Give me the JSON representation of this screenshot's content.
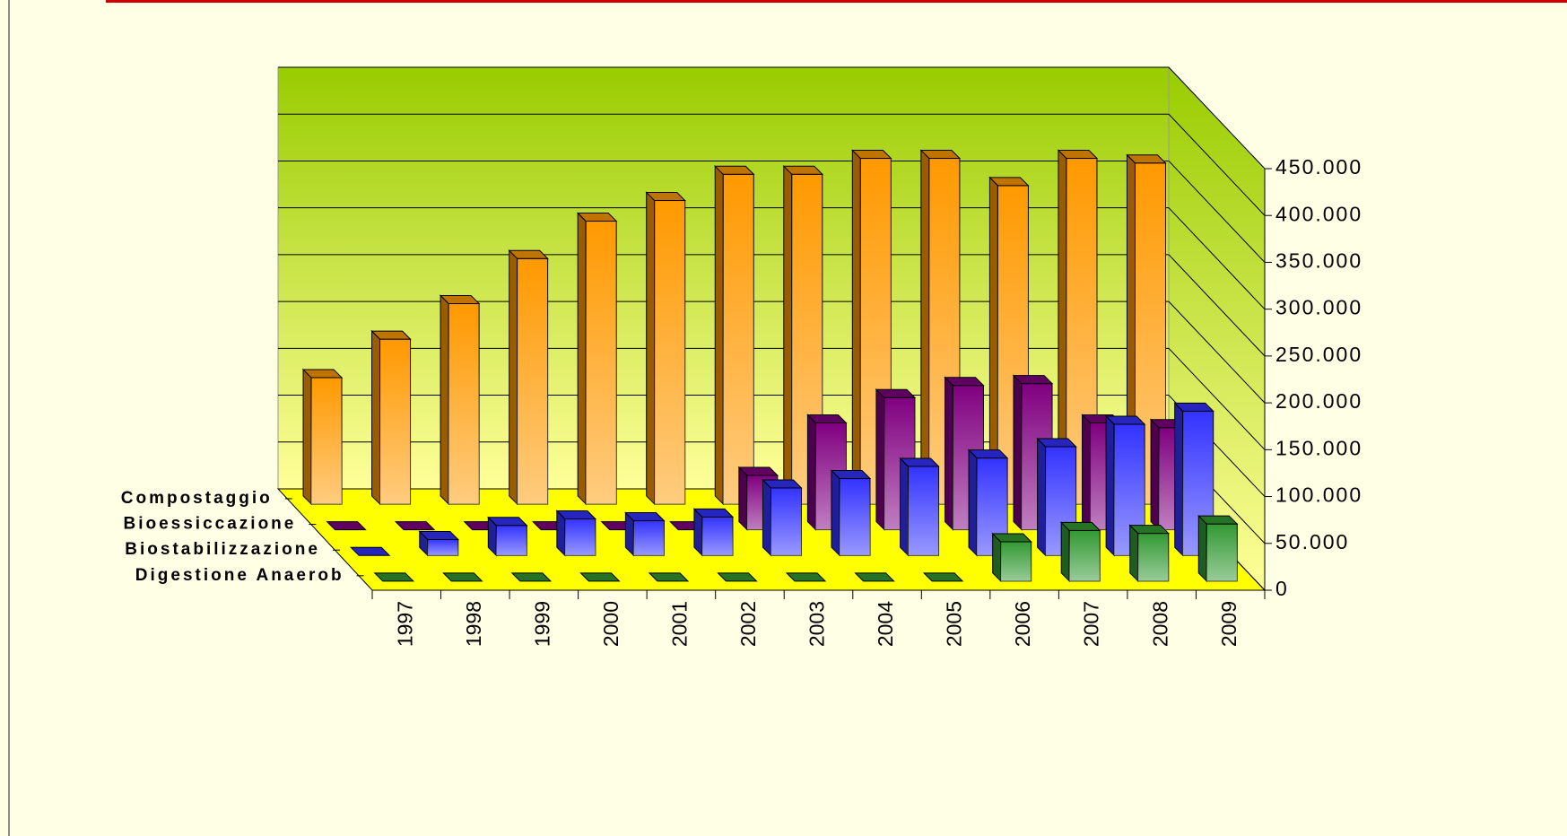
{
  "chart_data": {
    "type": "bar3d",
    "categories": [
      "1997",
      "1998",
      "1999",
      "2000",
      "2001",
      "2002",
      "2003",
      "2004",
      "2005",
      "2006",
      "2007",
      "2008",
      "2009"
    ],
    "series": [
      {
        "name": "Compostaggio",
        "color": "#ff9900",
        "values": [
          135000,
          176000,
          214000,
          262000,
          302000,
          324000,
          352000,
          352000,
          369000,
          369000,
          340000,
          369000,
          364000
        ]
      },
      {
        "name": "Bioessiccazione",
        "color": "#800080",
        "values": [
          0,
          0,
          0,
          0,
          0,
          0,
          58000,
          114000,
          141000,
          154000,
          156000,
          114000,
          109000
        ]
      },
      {
        "name": "Biostabilizzazione",
        "color": "#3333ff",
        "values": [
          0,
          17000,
          32000,
          39000,
          37000,
          41000,
          72000,
          82000,
          95000,
          104000,
          116000,
          140000,
          154000
        ]
      },
      {
        "name": "Digestione Anaerob",
        "color": "#339933",
        "values": [
          0,
          0,
          0,
          0,
          0,
          0,
          0,
          0,
          0,
          42000,
          54000,
          51000,
          61000
        ]
      }
    ],
    "ylim": [
      0,
      450000
    ],
    "yticks": [
      0,
      {
        "value": 50000,
        "label": "50.000"
      },
      {
        "value": 100000,
        "label": "100.000"
      },
      {
        "value": 150000,
        "label": "150.000"
      },
      {
        "value": 200000,
        "label": "200.000"
      },
      {
        "value": 250000,
        "label": "250.000"
      },
      {
        "value": 300000,
        "label": "300.000"
      },
      {
        "value": 350000,
        "label": "350.000"
      },
      {
        "value": 400000,
        "label": "400.000"
      },
      {
        "value": 450000,
        "label": "450.000"
      }
    ],
    "grid": true
  }
}
